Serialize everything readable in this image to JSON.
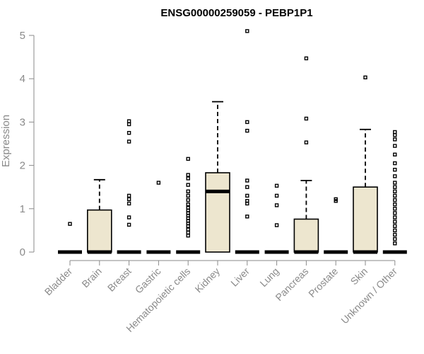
{
  "chart_data": {
    "type": "box",
    "title": "ENSG00000259059 - PEBP1P1",
    "ylabel": "Expression",
    "xlabel": "",
    "ylim": [
      0,
      5.2
    ],
    "yticks": [
      0,
      1,
      2,
      3,
      4,
      5
    ],
    "colors": {
      "box_fill": "#ede6cf",
      "stroke": "#000000",
      "axis": "#8a8a8a"
    },
    "categories": [
      {
        "name": "Bladder",
        "q1": 0,
        "median": 0,
        "q3": 0,
        "whisker_low": 0,
        "whisker_high": 0,
        "outliers": [
          0.65
        ]
      },
      {
        "name": "Brain",
        "q1": 0,
        "median": 0,
        "q3": 0.97,
        "whisker_low": 0,
        "whisker_high": 1.67,
        "outliers": []
      },
      {
        "name": "Breast",
        "q1": 0,
        "median": 0,
        "q3": 0,
        "whisker_low": 0,
        "whisker_high": 0,
        "outliers": [
          0.63,
          0.8,
          1.12,
          1.22,
          1.3,
          2.55,
          2.75,
          2.95,
          3.02
        ]
      },
      {
        "name": "Gastric",
        "q1": 0,
        "median": 0,
        "q3": 0,
        "whisker_low": 0,
        "whisker_high": 0,
        "outliers": [
          1.6
        ]
      },
      {
        "name": "Hematopoietic cells",
        "q1": 0,
        "median": 0,
        "q3": 0,
        "whisker_low": 0,
        "whisker_high": 0,
        "outliers": [
          0.38,
          0.45,
          0.52,
          0.6,
          0.66,
          0.72,
          0.78,
          0.84,
          0.9,
          0.96,
          1.02,
          1.1,
          1.2,
          1.3,
          1.4,
          1.55,
          1.7,
          1.78,
          2.15
        ]
      },
      {
        "name": "Kidney",
        "q1": 0,
        "median": 1.4,
        "q3": 1.83,
        "whisker_low": 0,
        "whisker_high": 3.47,
        "outliers": []
      },
      {
        "name": "Liver",
        "q1": 0,
        "median": 0,
        "q3": 0,
        "whisker_low": 0,
        "whisker_high": 0,
        "outliers": [
          0.82,
          1.12,
          1.18,
          1.3,
          1.5,
          1.65,
          2.8,
          3.0,
          5.1
        ]
      },
      {
        "name": "Lung",
        "q1": 0,
        "median": 0,
        "q3": 0,
        "whisker_low": 0,
        "whisker_high": 0,
        "outliers": [
          0.62,
          1.08,
          1.3,
          1.53
        ]
      },
      {
        "name": "Pancreas",
        "q1": 0,
        "median": 0,
        "q3": 0.76,
        "whisker_low": 0,
        "whisker_high": 1.65,
        "outliers": [
          2.53,
          3.08,
          4.47
        ]
      },
      {
        "name": "Prostate",
        "q1": 0,
        "median": 0,
        "q3": 0,
        "whisker_low": 0,
        "whisker_high": 0,
        "outliers": [
          1.18,
          1.22
        ]
      },
      {
        "name": "Skin",
        "q1": 0,
        "median": 0,
        "q3": 1.5,
        "whisker_low": 0,
        "whisker_high": 2.83,
        "outliers": [
          4.03
        ]
      },
      {
        "name": "Unknown / Other",
        "q1": 0,
        "median": 0,
        "q3": 0,
        "whisker_low": 0,
        "whisker_high": 0,
        "outliers": [
          0.2,
          0.3,
          0.4,
          0.5,
          0.6,
          0.7,
          0.8,
          0.9,
          1.0,
          1.1,
          1.2,
          1.3,
          1.4,
          1.5,
          1.6,
          1.75,
          1.9,
          2.05,
          2.25,
          2.45,
          2.6,
          2.7,
          2.77
        ]
      }
    ]
  }
}
